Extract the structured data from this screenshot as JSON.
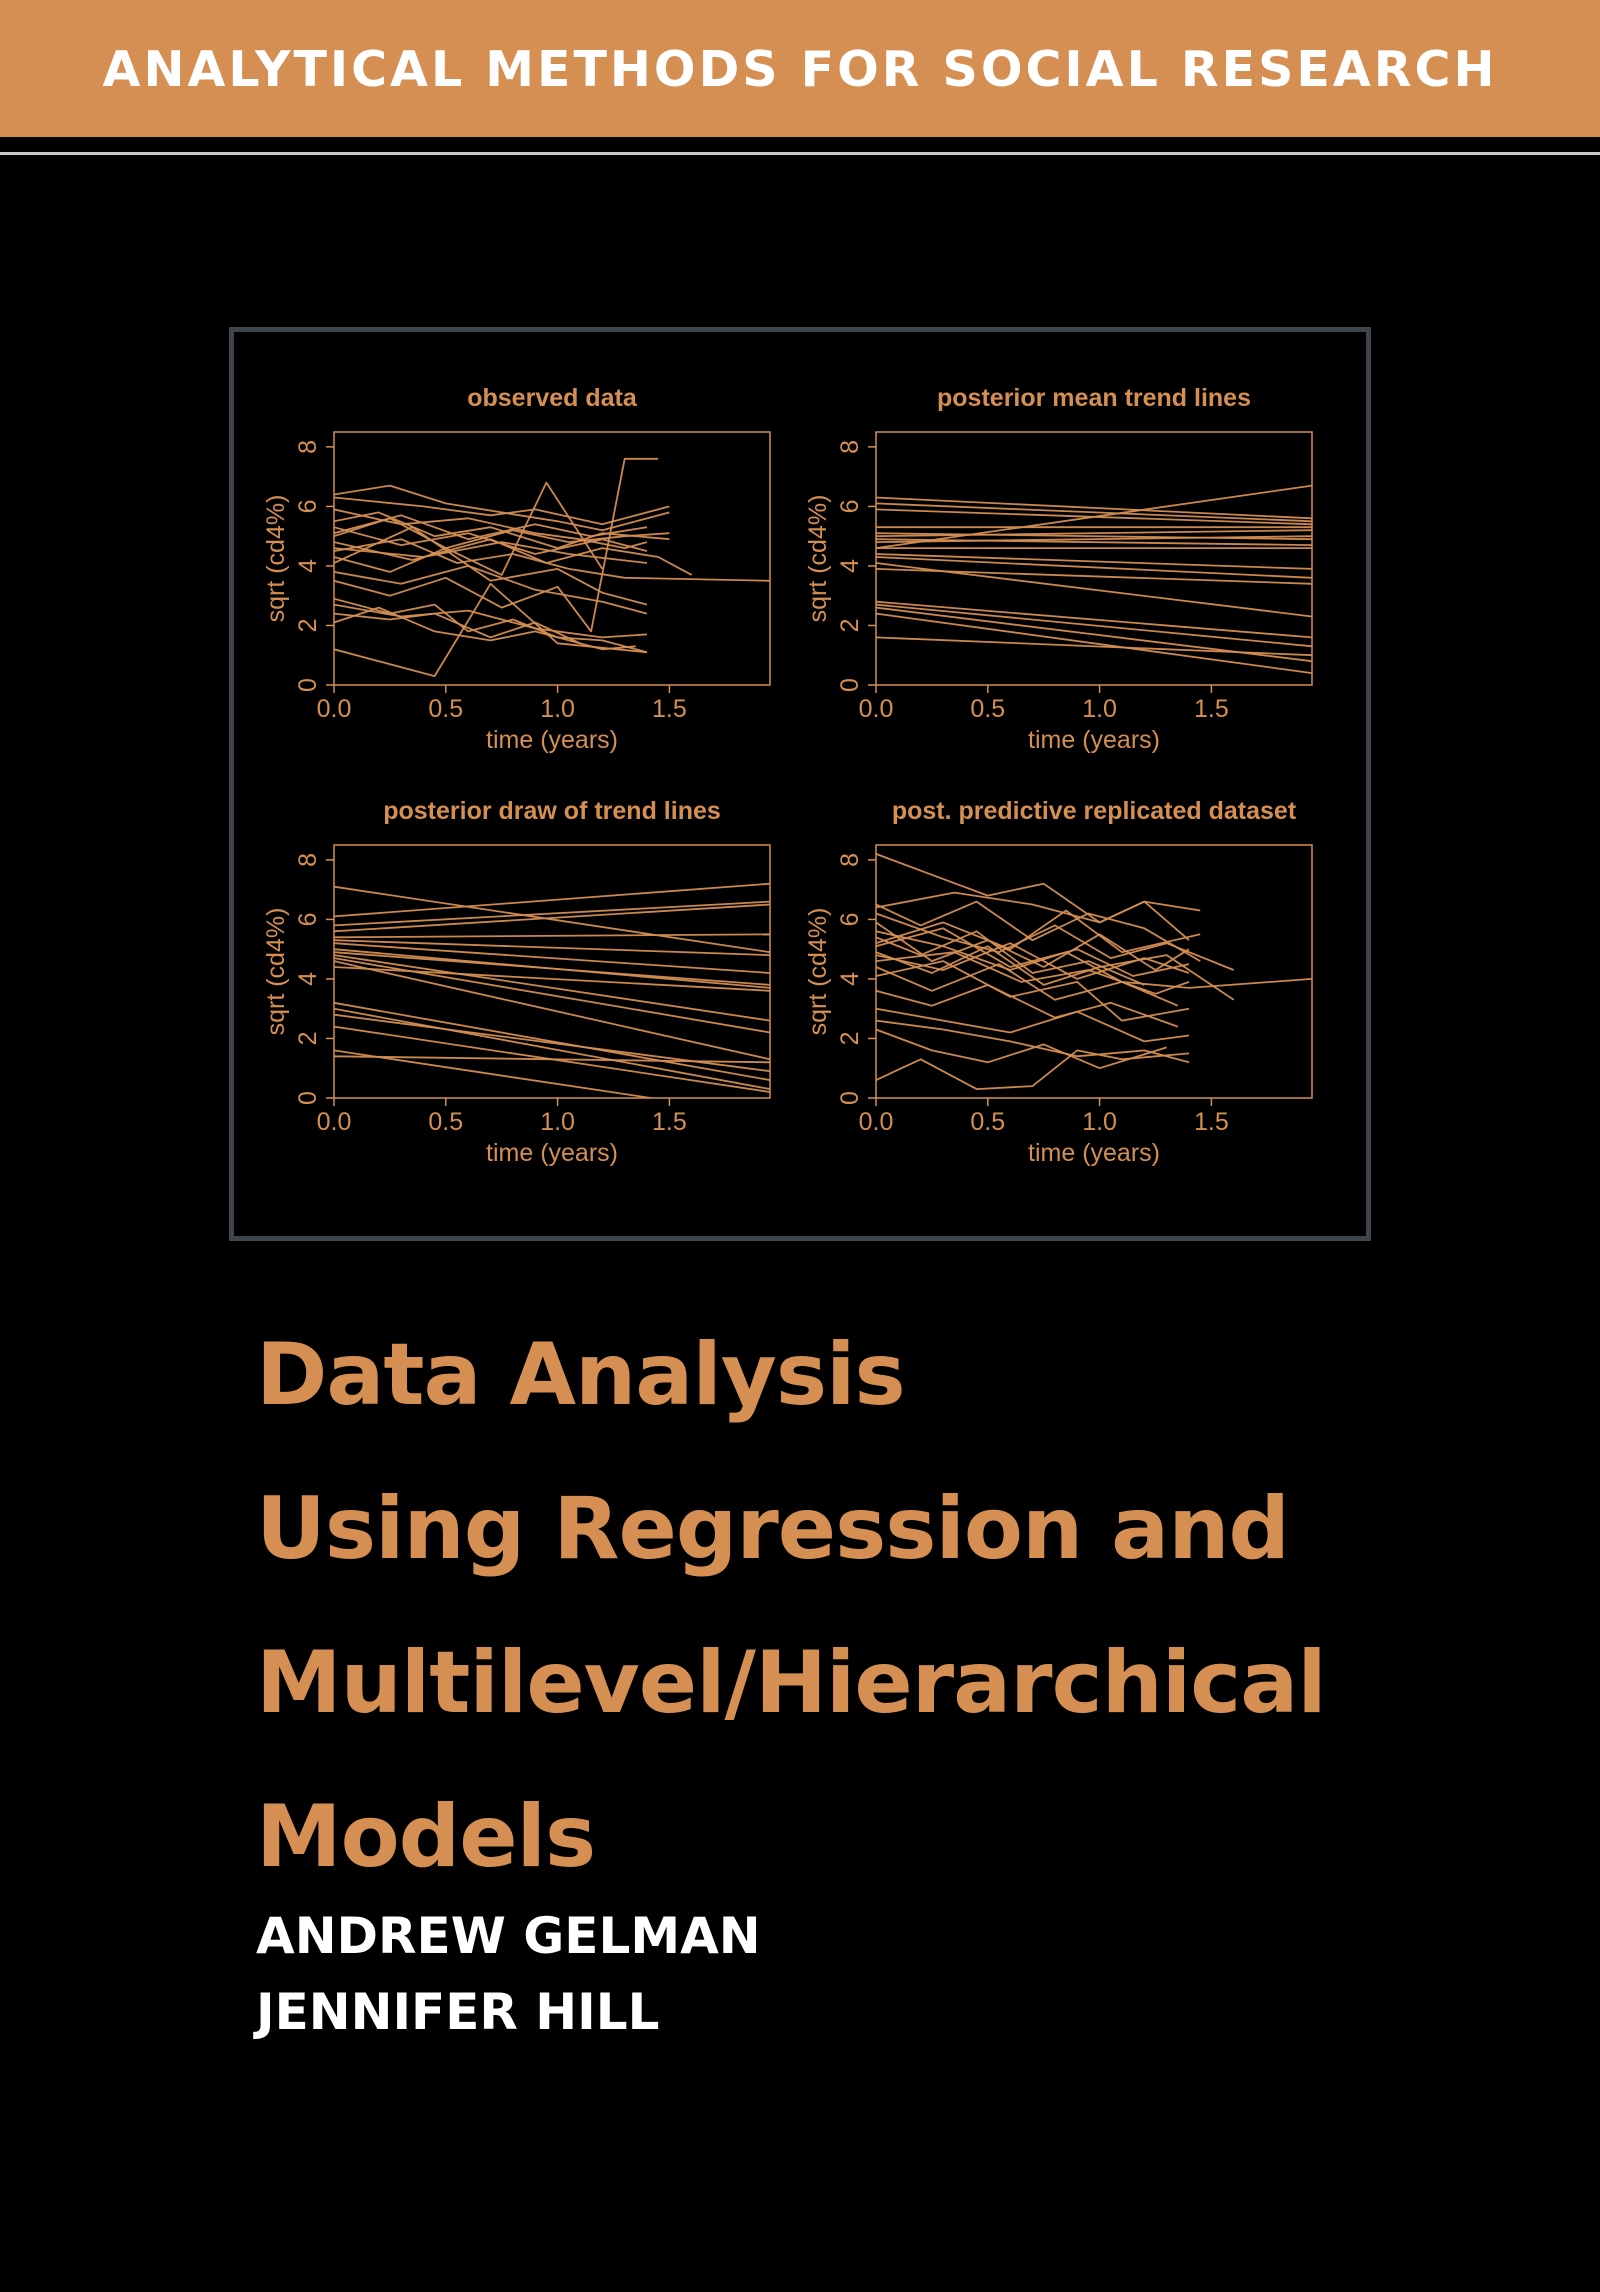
{
  "series": {
    "title": "ANALYTICAL METHODS FOR SOCIAL RESEARCH"
  },
  "book": {
    "title_lines": [
      "Data Analysis",
      "Using Regression and",
      "Multilevel/Hierarchical",
      "Models"
    ],
    "authors": [
      "ANDREW GELMAN",
      "JENNIFER HILL"
    ]
  },
  "colors": {
    "accent": "#d58f53",
    "background": "#000000",
    "frame": "#3e464c",
    "author_text": "#ffffff"
  },
  "chart_data": [
    {
      "type": "line",
      "title": "observed data",
      "xlabel": "time (years)",
      "ylabel": "sqrt (cd4%)",
      "xlim": [
        0,
        1.95
      ],
      "ylim": [
        0,
        8.5
      ],
      "xticks": [
        "0.0",
        "0.5",
        "1.0",
        "1.5"
      ],
      "yticks": [
        "0",
        "2",
        "4",
        "6",
        "8"
      ],
      "series": [
        {
          "x": [
            0,
            0.25,
            0.5,
            0.75,
            1.0,
            1.2,
            1.5
          ],
          "y": [
            6.4,
            6.7,
            6.1,
            5.8,
            5.5,
            5.2,
            5.8
          ]
        },
        {
          "x": [
            0,
            0.3,
            0.6,
            0.9,
            1.1,
            1.3,
            1.4
          ],
          "y": [
            5.9,
            5.4,
            5.6,
            5.1,
            4.9,
            4.6,
            4.8
          ]
        },
        {
          "x": [
            0,
            0.2,
            0.45,
            0.7,
            1.0,
            1.2,
            1.5
          ],
          "y": [
            5.5,
            5.8,
            5.0,
            5.3,
            4.6,
            5.1,
            4.9
          ]
        },
        {
          "x": [
            0,
            0.3,
            0.6,
            0.9,
            1.2,
            1.4
          ],
          "y": [
            5.3,
            4.7,
            5.1,
            4.4,
            4.9,
            4.5
          ]
        },
        {
          "x": [
            0,
            0.25,
            0.5,
            0.8,
            1.05,
            1.3,
            1.5
          ],
          "y": [
            5.0,
            5.6,
            4.6,
            5.2,
            4.8,
            5.0,
            5.1
          ]
        },
        {
          "x": [
            0,
            0.35,
            0.7,
            0.95,
            1.2,
            1.45,
            1.6
          ],
          "y": [
            4.8,
            4.2,
            4.9,
            4.1,
            4.6,
            4.3,
            3.7
          ]
        },
        {
          "x": [
            0,
            0.3,
            0.55,
            0.8,
            1.05,
            1.3,
            1.95
          ],
          "y": [
            4.5,
            4.9,
            4.1,
            4.4,
            3.9,
            3.6,
            3.5
          ]
        },
        {
          "x": [
            0,
            0.25,
            0.5,
            0.75,
            0.95,
            1.2
          ],
          "y": [
            4.3,
            3.8,
            4.6,
            3.7,
            6.8,
            3.9
          ]
        },
        {
          "x": [
            0,
            0.35,
            0.7,
            1.0,
            1.2,
            1.4
          ],
          "y": [
            4.1,
            5.3,
            3.5,
            3.9,
            3.1,
            2.7
          ]
        },
        {
          "x": [
            0,
            0.3,
            0.6,
            0.9,
            1.2,
            1.4
          ],
          "y": [
            3.8,
            3.4,
            4.0,
            3.2,
            2.8,
            2.4
          ]
        },
        {
          "x": [
            0,
            0.25,
            0.5,
            0.75,
            1.0,
            1.15,
            1.3,
            1.45
          ],
          "y": [
            3.5,
            3.0,
            3.6,
            2.6,
            3.3,
            1.8,
            7.6,
            7.6
          ]
        },
        {
          "x": [
            0,
            0.25,
            0.45,
            0.6,
            0.8,
            1.0,
            1.2,
            1.4
          ],
          "y": [
            2.9,
            2.4,
            2.7,
            1.8,
            2.2,
            1.6,
            1.5,
            1.1
          ]
        },
        {
          "x": [
            0,
            0.3,
            0.6,
            0.9,
            1.2,
            1.4
          ],
          "y": [
            2.7,
            2.3,
            2.5,
            1.9,
            1.6,
            1.7
          ]
        },
        {
          "x": [
            0,
            0.25,
            0.45,
            0.7,
            0.9,
            1.1
          ],
          "y": [
            2.4,
            2.2,
            2.4,
            1.6,
            2.1,
            1.4
          ]
        },
        {
          "x": [
            0,
            0.2,
            0.45,
            0.7,
            0.9,
            1.2,
            1.35
          ],
          "y": [
            2.1,
            2.6,
            1.8,
            1.5,
            1.8,
            1.2,
            1.3
          ]
        },
        {
          "x": [
            0,
            0.2,
            0.45,
            0.7,
            1.0,
            1.4
          ],
          "y": [
            1.2,
            0.8,
            0.3,
            3.4,
            1.4,
            1.1
          ]
        },
        {
          "x": [
            0,
            0.4,
            0.7,
            0.9,
            1.2,
            1.5
          ],
          "y": [
            6.3,
            6.0,
            5.7,
            5.9,
            5.4,
            6.0
          ]
        },
        {
          "x": [
            0,
            0.3,
            0.6,
            0.9,
            1.15,
            1.4
          ],
          "y": [
            5.1,
            5.7,
            4.9,
            5.4,
            5.0,
            5.3
          ]
        },
        {
          "x": [
            0,
            0.4,
            0.75,
            1.05,
            1.4
          ],
          "y": [
            4.6,
            4.3,
            4.8,
            4.4,
            4.1
          ]
        }
      ]
    },
    {
      "type": "line",
      "title": "posterior mean trend lines",
      "xlabel": "time (years)",
      "ylabel": "sqrt (cd4%)",
      "xlim": [
        0,
        1.95
      ],
      "ylim": [
        0,
        8.5
      ],
      "xticks": [
        "0.0",
        "0.5",
        "1.0",
        "1.5"
      ],
      "yticks": [
        "0",
        "2",
        "4",
        "6",
        "8"
      ],
      "series": [
        {
          "x": [
            0,
            1.95
          ],
          "y": [
            6.3,
            5.6
          ]
        },
        {
          "x": [
            0,
            1.95
          ],
          "y": [
            6.1,
            5.5
          ]
        },
        {
          "x": [
            0,
            1.95
          ],
          "y": [
            5.9,
            5.4
          ]
        },
        {
          "x": [
            0,
            1.95
          ],
          "y": [
            5.3,
            5.3
          ]
        },
        {
          "x": [
            0,
            1.95
          ],
          "y": [
            5.0,
            5.2
          ]
        },
        {
          "x": [
            0,
            1.95
          ],
          "y": [
            4.8,
            5.0
          ]
        },
        {
          "x": [
            0,
            1.95
          ],
          "y": [
            4.6,
            6.7
          ]
        },
        {
          "x": [
            0,
            1.95
          ],
          "y": [
            5.1,
            4.9
          ]
        },
        {
          "x": [
            0,
            1.95
          ],
          "y": [
            4.9,
            4.7
          ]
        },
        {
          "x": [
            0,
            1.95
          ],
          "y": [
            4.6,
            4.6
          ]
        },
        {
          "x": [
            0,
            1.95
          ],
          "y": [
            4.4,
            3.9
          ]
        },
        {
          "x": [
            0,
            1.95
          ],
          "y": [
            4.3,
            3.6
          ]
        },
        {
          "x": [
            0,
            1.95
          ],
          "y": [
            4.1,
            2.3
          ]
        },
        {
          "x": [
            0,
            1.95
          ],
          "y": [
            3.9,
            3.4
          ]
        },
        {
          "x": [
            0,
            1.95
          ],
          "y": [
            2.8,
            1.6
          ]
        },
        {
          "x": [
            0,
            1.95
          ],
          "y": [
            2.7,
            1.3
          ]
        },
        {
          "x": [
            0,
            1.95
          ],
          "y": [
            2.6,
            0.8
          ]
        },
        {
          "x": [
            0,
            1.95
          ],
          "y": [
            2.4,
            0.4
          ]
        },
        {
          "x": [
            0,
            1.95
          ],
          "y": [
            1.6,
            1.0
          ]
        }
      ]
    },
    {
      "type": "line",
      "title": "posterior draw of trend lines",
      "xlabel": "time (years)",
      "ylabel": "sqrt (cd4%)",
      "xlim": [
        0,
        1.95
      ],
      "ylim": [
        0,
        8.5
      ],
      "xticks": [
        "0.0",
        "0.5",
        "1.0",
        "1.5"
      ],
      "yticks": [
        "0",
        "2",
        "4",
        "6",
        "8"
      ],
      "series": [
        {
          "x": [
            0,
            1.95
          ],
          "y": [
            7.1,
            4.9
          ]
        },
        {
          "x": [
            0,
            1.95
          ],
          "y": [
            6.1,
            7.2
          ]
        },
        {
          "x": [
            0,
            1.95
          ],
          "y": [
            5.8,
            6.6
          ]
        },
        {
          "x": [
            0,
            1.95
          ],
          "y": [
            5.6,
            6.5
          ]
        },
        {
          "x": [
            0,
            1.95
          ],
          "y": [
            5.4,
            5.5
          ]
        },
        {
          "x": [
            0,
            1.95
          ],
          "y": [
            5.3,
            4.8
          ]
        },
        {
          "x": [
            0,
            1.95
          ],
          "y": [
            5.2,
            4.2
          ]
        },
        {
          "x": [
            0,
            1.95
          ],
          "y": [
            5.0,
            3.7
          ]
        },
        {
          "x": [
            0,
            1.95
          ],
          "y": [
            4.9,
            3.8
          ]
        },
        {
          "x": [
            0,
            1.95
          ],
          "y": [
            4.8,
            2.6
          ]
        },
        {
          "x": [
            0,
            1.95
          ],
          "y": [
            4.7,
            2.2
          ]
        },
        {
          "x": [
            0,
            1.95
          ],
          "y": [
            4.6,
            1.3
          ]
        },
        {
          "x": [
            0,
            1.95
          ],
          "y": [
            4.4,
            3.6
          ]
        },
        {
          "x": [
            0,
            1.95
          ],
          "y": [
            3.2,
            0.6
          ]
        },
        {
          "x": [
            0,
            1.95
          ],
          "y": [
            3.0,
            0.3
          ]
        },
        {
          "x": [
            0,
            1.95
          ],
          "y": [
            2.8,
            0.9
          ]
        },
        {
          "x": [
            0,
            1.95
          ],
          "y": [
            2.4,
            0.2
          ]
        },
        {
          "x": [
            0,
            1.95
          ],
          "y": [
            1.6,
            -0.6
          ]
        },
        {
          "x": [
            0,
            1.95
          ],
          "y": [
            1.4,
            1.2
          ]
        }
      ]
    },
    {
      "type": "line",
      "title": "post. predictive replicated dataset",
      "xlabel": "time (years)",
      "ylabel": "sqrt (cd4%)",
      "xlim": [
        0,
        1.95
      ],
      "ylim": [
        0,
        8.5
      ],
      "xticks": [
        "0.0",
        "0.5",
        "1.0",
        "1.5"
      ],
      "yticks": [
        "0",
        "2",
        "4",
        "6",
        "8"
      ],
      "series": [
        {
          "x": [
            0,
            0.25,
            0.5,
            0.75,
            1.0,
            1.2,
            1.4
          ],
          "y": [
            8.2,
            7.5,
            6.8,
            7.2,
            5.9,
            6.6,
            5.3
          ]
        },
        {
          "x": [
            0,
            0.2,
            0.45,
            0.7,
            0.95,
            1.2,
            1.45
          ],
          "y": [
            6.5,
            5.8,
            6.6,
            5.3,
            6.2,
            5.7,
            4.6
          ]
        },
        {
          "x": [
            0,
            0.3,
            0.55,
            0.8,
            1.05,
            1.3,
            1.6
          ],
          "y": [
            6.2,
            5.4,
            4.9,
            5.8,
            4.7,
            5.2,
            4.3
          ]
        },
        {
          "x": [
            0,
            0.25,
            0.5,
            0.75,
            1.0,
            1.25,
            1.4
          ],
          "y": [
            5.9,
            4.6,
            5.3,
            4.4,
            5.5,
            4.3,
            5.0
          ]
        },
        {
          "x": [
            0,
            0.3,
            0.6,
            0.85,
            1.1,
            1.4,
            1.95
          ],
          "y": [
            5.6,
            5.1,
            4.3,
            4.9,
            3.9,
            3.7,
            4.0
          ]
        },
        {
          "x": [
            0,
            0.2,
            0.45,
            0.7,
            0.95,
            1.2
          ],
          "y": [
            5.4,
            4.8,
            5.6,
            4.2,
            4.6,
            3.8
          ]
        },
        {
          "x": [
            0,
            0.3,
            0.6,
            0.9,
            1.15,
            1.4
          ],
          "y": [
            5.1,
            5.7,
            4.4,
            5.0,
            4.1,
            4.5
          ]
        },
        {
          "x": [
            0,
            0.25,
            0.5,
            0.75,
            1.0,
            1.3,
            1.6
          ],
          "y": [
            4.9,
            4.2,
            5.1,
            3.8,
            4.4,
            4.8,
            3.3
          ]
        },
        {
          "x": [
            0,
            0.35,
            0.65,
            0.95,
            1.25,
            1.4
          ],
          "y": [
            4.6,
            4.9,
            3.9,
            4.3,
            3.5,
            3.9
          ]
        },
        {
          "x": [
            0,
            0.25,
            0.55,
            0.8,
            1.1,
            1.35
          ],
          "y": [
            4.4,
            3.6,
            4.5,
            3.3,
            3.9,
            3.1
          ]
        },
        {
          "x": [
            0,
            0.3,
            0.6,
            0.9,
            1.1,
            1.4
          ],
          "y": [
            4.1,
            4.6,
            3.4,
            3.9,
            2.6,
            3.0
          ]
        },
        {
          "x": [
            0,
            0.25,
            0.5,
            0.8,
            1.05,
            1.35
          ],
          "y": [
            3.6,
            3.1,
            3.8,
            2.7,
            3.2,
            2.4
          ]
        },
        {
          "x": [
            0,
            0.3,
            0.6,
            0.9,
            1.2,
            1.4
          ],
          "y": [
            3.0,
            2.6,
            2.2,
            2.9,
            1.9,
            2.1
          ]
        },
        {
          "x": [
            0,
            0.3,
            0.6,
            0.9,
            1.2,
            1.4
          ],
          "y": [
            2.6,
            2.3,
            1.9,
            1.4,
            1.6,
            1.2
          ]
        },
        {
          "x": [
            0,
            0.25,
            0.5,
            0.75,
            1.0,
            1.3
          ],
          "y": [
            2.3,
            1.6,
            1.2,
            1.8,
            1.0,
            1.7
          ]
        },
        {
          "x": [
            0,
            0.2,
            0.45,
            0.7,
            0.9,
            1.1,
            1.4
          ],
          "y": [
            0.6,
            1.3,
            0.3,
            0.4,
            1.6,
            1.3,
            1.5
          ]
        },
        {
          "x": [
            0,
            0.35,
            0.7,
            1.0,
            1.2,
            1.45
          ],
          "y": [
            6.4,
            6.9,
            6.5,
            5.9,
            6.6,
            6.3
          ]
        },
        {
          "x": [
            0,
            0.3,
            0.6,
            0.85,
            1.1,
            1.45
          ],
          "y": [
            5.2,
            5.9,
            5.0,
            6.3,
            4.9,
            5.5
          ]
        },
        {
          "x": [
            0,
            0.3,
            0.6,
            0.9,
            1.2,
            1.4
          ],
          "y": [
            4.8,
            4.3,
            5.2,
            4.0,
            4.7,
            4.2
          ]
        }
      ]
    }
  ]
}
